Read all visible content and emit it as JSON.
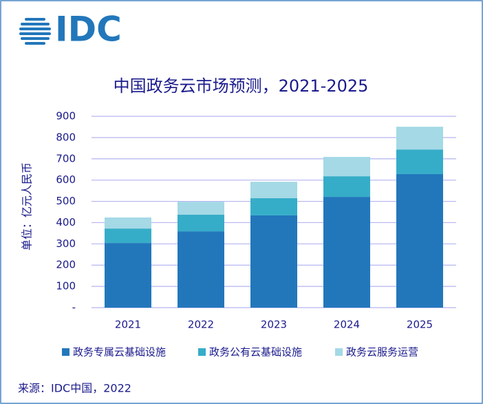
{
  "logo": "IDC",
  "chart_data": {
    "type": "stacked-bar",
    "title": "中国政务云市场预测，2021-2025",
    "y_label": "单位：亿元人民币",
    "categories": [
      "2021",
      "2022",
      "2023",
      "2024",
      "2025"
    ],
    "series": [
      {
        "name": "政务专属云基础设施",
        "color": "#2277bb",
        "values": [
          304,
          359,
          434,
          521,
          628
        ]
      },
      {
        "name": "政务公有云基础设施",
        "color": "#36adc8",
        "values": [
          68,
          78,
          81,
          97,
          116
        ]
      },
      {
        "name": "政务云服务运营",
        "color": "#a4d9e5",
        "values": [
          52,
          61,
          77,
          91,
          107
        ]
      }
    ],
    "ylim": [
      0,
      900
    ],
    "yticks": [
      {
        "value": 0,
        "label": "-"
      },
      100,
      200,
      300,
      400,
      500,
      600,
      700,
      800,
      900
    ],
    "grid": true,
    "source": "来源：IDC中国，2022"
  }
}
